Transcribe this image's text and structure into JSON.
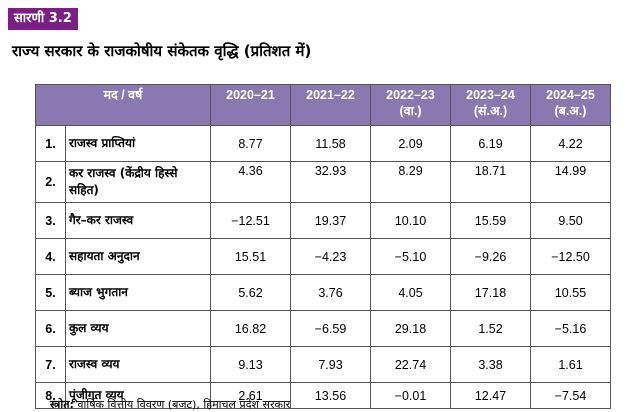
{
  "badge": "सारणी 3.2",
  "title": "राज्य सरकार के राजकोषीय संकेतक वृद्धि (प्रतिशत में)",
  "table": {
    "head_label": "मद / वर्ष",
    "years": [
      {
        "year": "2020–21",
        "note": ""
      },
      {
        "year": "2021–22",
        "note": ""
      },
      {
        "year": "2022–23",
        "note": "(वा.)"
      },
      {
        "year": "2023–24",
        "note": "(सं.अ.)"
      },
      {
        "year": "2024–25",
        "note": "(ब.अ.)"
      }
    ],
    "rows": [
      {
        "no": "1.",
        "item": "राजस्व प्राप्तियां",
        "values": [
          "8.77",
          "11.58",
          "2.09",
          "6.19",
          "4.22"
        ]
      },
      {
        "no": "2.",
        "item": "कर राजस्व (केंद्रीय हिस्से सहित)",
        "values": [
          "4.36",
          "32.93",
          "8.29",
          "18.71",
          "14.99"
        ]
      },
      {
        "no": "3.",
        "item": "गैर–कर राजस्व",
        "values": [
          "−12.51",
          "19.37",
          "10.10",
          "15.59",
          "9.50"
        ]
      },
      {
        "no": "4.",
        "item": "सहायता अनुदान",
        "values": [
          "15.51",
          "−4.23",
          "−5.10",
          "−9.26",
          "−12.50"
        ]
      },
      {
        "no": "5.",
        "item": "ब्याज भुगतान",
        "values": [
          "5.62",
          "3.76",
          "4.05",
          "17.18",
          "10.55"
        ]
      },
      {
        "no": "6.",
        "item": "कुल व्यय",
        "values": [
          "16.82",
          "−6.59",
          "29.18",
          "1.52",
          "−5.16"
        ]
      },
      {
        "no": "7.",
        "item": "राजस्व व्यय",
        "values": [
          "9.13",
          "7.93",
          "22.74",
          "3.38",
          "1.61"
        ]
      },
      {
        "no": "8.",
        "item": "पूंजीगत व्यय",
        "values": [
          "2.61",
          "13.56",
          "−0.01",
          "12.47",
          "−7.54"
        ]
      }
    ]
  },
  "source": {
    "label": "स्त्रोत:",
    "text": "वार्षिक वित्तीय विवरण (बजट), हिमाचल प्रदेश सरकार"
  },
  "colors": {
    "badge_bg": "#7a1f86",
    "header_bg": "#8a79b1"
  }
}
